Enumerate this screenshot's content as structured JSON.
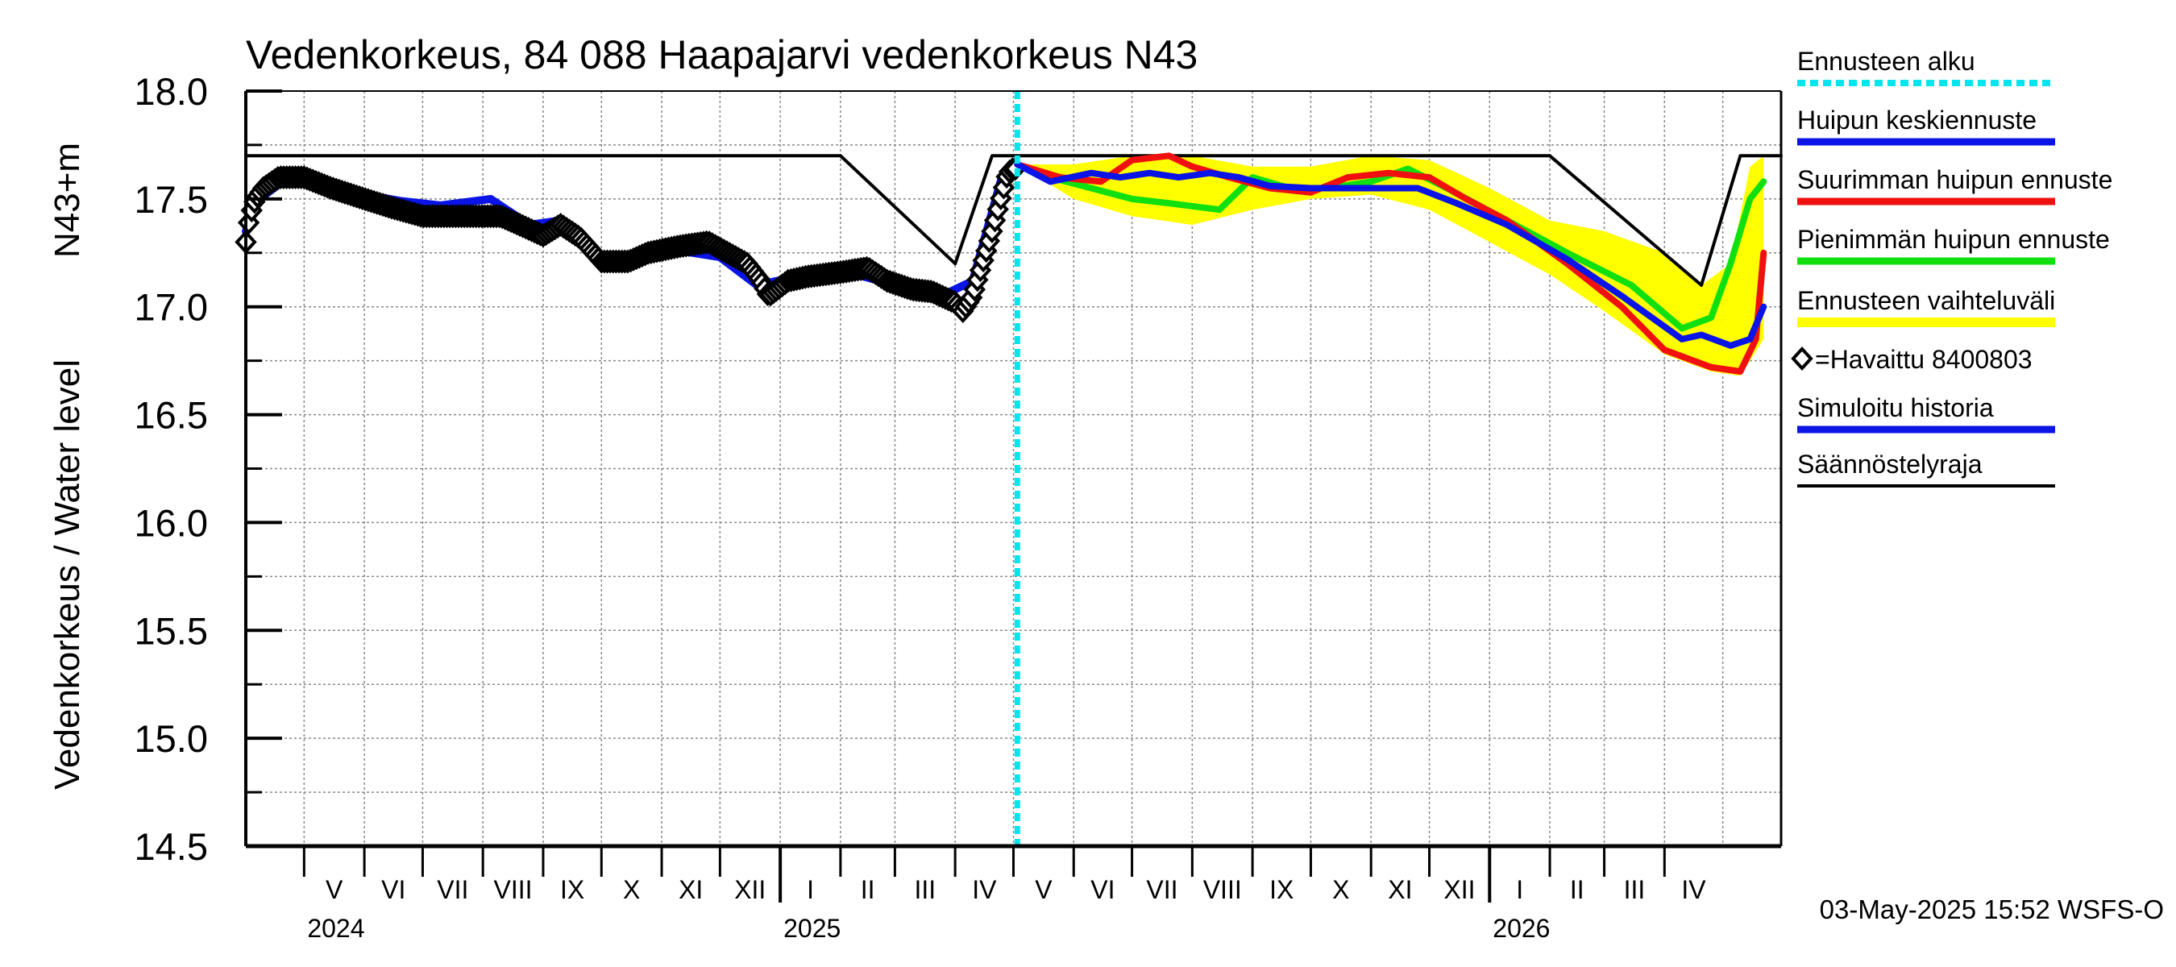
{
  "chart_data": {
    "type": "line",
    "title": "Vedenkorkeus, 84 088 Haapajarvi vedenkorkeus N43",
    "ylabel_outer": "Vedenkorkeus / Water level",
    "ylabel_inner": "N43+m",
    "ylim": [
      14.5,
      18.0
    ],
    "yticks": [
      "18.0",
      "17.5",
      "17.0",
      "16.5",
      "16.0",
      "15.5",
      "15.0",
      "14.5"
    ],
    "grid": true,
    "x_start": "2024-04-01",
    "x_end": "2026-05-31",
    "forecast_start": "2025-05-03",
    "months": [
      "V",
      "VI",
      "VII",
      "VIII",
      "IX",
      "X",
      "XI",
      "XII",
      "I",
      "II",
      "III",
      "IV",
      "V",
      "VI",
      "VII",
      "VIII",
      "IX",
      "X",
      "XI",
      "XII",
      "I",
      "II",
      "III",
      "IV"
    ],
    "years": [
      "2024",
      "2025",
      "2026"
    ],
    "timestamp": "03-May-2025 15:52 WSFS-O",
    "legend": {
      "position": "right",
      "items": [
        {
          "key": "forecast_start",
          "label": "Ennusteen alku",
          "color": "#00e5ee",
          "style": "dashed"
        },
        {
          "key": "mean",
          "label": "Huipun keskiennuste",
          "color": "#0a14e6",
          "style": "line"
        },
        {
          "key": "max",
          "label": "Suurimman huipun ennuste",
          "color": "#f01010",
          "style": "line"
        },
        {
          "key": "min",
          "label": "Pienimmän huipun ennuste",
          "color": "#10e010",
          "style": "line"
        },
        {
          "key": "band",
          "label": "Ennusteen vaihteluväli",
          "color": "#ffff00",
          "style": "band"
        },
        {
          "key": "observed",
          "label": "=Havaittu 8400803",
          "color": "#000000",
          "style": "marker"
        },
        {
          "key": "sim",
          "label": "Simuloitu historia",
          "color": "#0a14e6",
          "style": "line"
        },
        {
          "key": "reg",
          "label": "Säännöstelyraja",
          "color": "#000000",
          "style": "thin"
        }
      ]
    },
    "series": {
      "regulation_limit": [
        [
          "2024-04-01",
          17.7
        ],
        [
          "2025-02-01",
          17.7
        ],
        [
          "2025-04-01",
          17.2
        ],
        [
          "2025-04-20",
          17.7
        ],
        [
          "2026-02-01",
          17.7
        ],
        [
          "2026-04-20",
          17.1
        ],
        [
          "2026-05-10",
          17.7
        ],
        [
          "2026-05-31",
          17.7
        ]
      ],
      "observed": [
        [
          "2024-04-01",
          17.3
        ],
        [
          "2024-04-03",
          17.42
        ],
        [
          "2024-04-06",
          17.5
        ],
        [
          "2024-04-10",
          17.55
        ],
        [
          "2024-04-18",
          17.6
        ],
        [
          "2024-05-01",
          17.6
        ],
        [
          "2024-05-15",
          17.55
        ],
        [
          "2024-06-01",
          17.5
        ],
        [
          "2024-06-15",
          17.46
        ],
        [
          "2024-07-01",
          17.42
        ],
        [
          "2024-07-15",
          17.42
        ],
        [
          "2024-07-31",
          17.42
        ],
        [
          "2024-08-10",
          17.42
        ],
        [
          "2024-08-20",
          17.38
        ],
        [
          "2024-09-01",
          17.33
        ],
        [
          "2024-09-10",
          17.38
        ],
        [
          "2024-09-20",
          17.32
        ],
        [
          "2024-10-01",
          17.21
        ],
        [
          "2024-10-15",
          17.21
        ],
        [
          "2024-10-25",
          17.25
        ],
        [
          "2024-11-10",
          17.28
        ],
        [
          "2024-11-25",
          17.3
        ],
        [
          "2024-12-05",
          17.25
        ],
        [
          "2024-12-15",
          17.2
        ],
        [
          "2024-12-22",
          17.12
        ],
        [
          "2024-12-26",
          17.05
        ],
        [
          "2025-01-05",
          17.12
        ],
        [
          "2025-01-15",
          17.14
        ],
        [
          "2025-02-01",
          17.16
        ],
        [
          "2025-02-15",
          17.18
        ],
        [
          "2025-02-25",
          17.12
        ],
        [
          "2025-03-10",
          17.08
        ],
        [
          "2025-03-20",
          17.07
        ],
        [
          "2025-04-01",
          17.02
        ],
        [
          "2025-04-05",
          16.98
        ],
        [
          "2025-04-10",
          17.05
        ],
        [
          "2025-04-15",
          17.2
        ],
        [
          "2025-04-20",
          17.35
        ],
        [
          "2025-04-25",
          17.52
        ],
        [
          "2025-04-28",
          17.62
        ],
        [
          "2025-05-01",
          17.64
        ],
        [
          "2025-05-03",
          17.64
        ]
      ],
      "simulated": [
        [
          "2024-04-01",
          17.35
        ],
        [
          "2024-04-08",
          17.5
        ],
        [
          "2024-04-20",
          17.58
        ],
        [
          "2024-05-10",
          17.56
        ],
        [
          "2024-06-01",
          17.52
        ],
        [
          "2024-06-20",
          17.49
        ],
        [
          "2024-07-10",
          17.47
        ],
        [
          "2024-08-05",
          17.5
        ],
        [
          "2024-08-25",
          17.38
        ],
        [
          "2024-09-10",
          17.4
        ],
        [
          "2024-10-01",
          17.22
        ],
        [
          "2024-10-20",
          17.22
        ],
        [
          "2024-11-10",
          17.26
        ],
        [
          "2024-12-01",
          17.23
        ],
        [
          "2024-12-20",
          17.1
        ],
        [
          "2025-01-10",
          17.14
        ],
        [
          "2025-02-01",
          17.17
        ],
        [
          "2025-03-01",
          17.1
        ],
        [
          "2025-03-25",
          17.05
        ],
        [
          "2025-04-10",
          17.12
        ],
        [
          "2025-04-25",
          17.6
        ],
        [
          "2025-05-03",
          17.66
        ]
      ],
      "mean": [
        [
          "2025-05-03",
          17.66
        ],
        [
          "2025-05-20",
          17.58
        ],
        [
          "2025-06-10",
          17.62
        ],
        [
          "2025-06-25",
          17.6
        ],
        [
          "2025-07-10",
          17.62
        ],
        [
          "2025-07-25",
          17.6
        ],
        [
          "2025-08-10",
          17.62
        ],
        [
          "2025-08-25",
          17.6
        ],
        [
          "2025-09-10",
          17.56
        ],
        [
          "2025-10-01",
          17.55
        ],
        [
          "2025-11-01",
          17.55
        ],
        [
          "2025-11-25",
          17.55
        ],
        [
          "2025-12-15",
          17.48
        ],
        [
          "2026-01-10",
          17.38
        ],
        [
          "2026-02-10",
          17.22
        ],
        [
          "2026-03-10",
          17.05
        ],
        [
          "2026-04-10",
          16.85
        ],
        [
          "2026-04-20",
          16.87
        ],
        [
          "2026-05-05",
          16.82
        ],
        [
          "2026-05-15",
          16.85
        ],
        [
          "2026-05-22",
          17.0
        ]
      ],
      "max": [
        [
          "2025-05-03",
          17.66
        ],
        [
          "2025-05-25",
          17.6
        ],
        [
          "2025-06-15",
          17.58
        ],
        [
          "2025-07-01",
          17.68
        ],
        [
          "2025-07-20",
          17.7
        ],
        [
          "2025-08-01",
          17.65
        ],
        [
          "2025-08-20",
          17.6
        ],
        [
          "2025-09-10",
          17.55
        ],
        [
          "2025-10-01",
          17.53
        ],
        [
          "2025-10-20",
          17.6
        ],
        [
          "2025-11-10",
          17.62
        ],
        [
          "2025-12-01",
          17.6
        ],
        [
          "2025-12-20",
          17.5
        ],
        [
          "2026-01-10",
          17.4
        ],
        [
          "2026-02-10",
          17.2
        ],
        [
          "2026-03-10",
          17.0
        ],
        [
          "2026-04-01",
          16.8
        ],
        [
          "2026-04-25",
          16.72
        ],
        [
          "2026-05-10",
          16.7
        ],
        [
          "2026-05-18",
          16.85
        ],
        [
          "2026-05-22",
          17.25
        ]
      ],
      "min": [
        [
          "2025-05-03",
          17.66
        ],
        [
          "2025-05-20",
          17.6
        ],
        [
          "2025-06-10",
          17.55
        ],
        [
          "2025-07-01",
          17.5
        ],
        [
          "2025-07-20",
          17.48
        ],
        [
          "2025-08-15",
          17.45
        ],
        [
          "2025-09-01",
          17.6
        ],
        [
          "2025-09-20",
          17.55
        ],
        [
          "2025-10-10",
          17.55
        ],
        [
          "2025-11-01",
          17.58
        ],
        [
          "2025-11-20",
          17.64
        ],
        [
          "2025-12-10",
          17.55
        ],
        [
          "2026-01-10",
          17.4
        ],
        [
          "2026-02-10",
          17.25
        ],
        [
          "2026-03-15",
          17.1
        ],
        [
          "2026-04-10",
          16.9
        ],
        [
          "2026-04-25",
          16.95
        ],
        [
          "2026-05-05",
          17.2
        ],
        [
          "2026-05-15",
          17.5
        ],
        [
          "2026-05-22",
          17.58
        ]
      ],
      "band_upper": [
        [
          "2025-05-03",
          17.66
        ],
        [
          "2025-06-01",
          17.66
        ],
        [
          "2025-07-01",
          17.7
        ],
        [
          "2025-08-01",
          17.7
        ],
        [
          "2025-09-01",
          17.65
        ],
        [
          "2025-10-01",
          17.65
        ],
        [
          "2025-11-01",
          17.7
        ],
        [
          "2025-12-01",
          17.68
        ],
        [
          "2026-01-01",
          17.55
        ],
        [
          "2026-02-01",
          17.4
        ],
        [
          "2026-03-01",
          17.35
        ],
        [
          "2026-04-01",
          17.25
        ],
        [
          "2026-04-20",
          17.1
        ],
        [
          "2026-05-05",
          17.2
        ],
        [
          "2026-05-15",
          17.65
        ],
        [
          "2026-05-22",
          17.7
        ]
      ],
      "band_lower": [
        [
          "2025-05-03",
          17.66
        ],
        [
          "2025-06-01",
          17.5
        ],
        [
          "2025-07-01",
          17.42
        ],
        [
          "2025-08-01",
          17.38
        ],
        [
          "2025-09-01",
          17.45
        ],
        [
          "2025-10-01",
          17.5
        ],
        [
          "2025-11-01",
          17.52
        ],
        [
          "2025-12-01",
          17.45
        ],
        [
          "2026-01-01",
          17.3
        ],
        [
          "2026-02-01",
          17.15
        ],
        [
          "2026-03-01",
          16.98
        ],
        [
          "2026-04-01",
          16.78
        ],
        [
          "2026-04-25",
          16.7
        ],
        [
          "2026-05-10",
          16.68
        ],
        [
          "2026-05-22",
          16.85
        ]
      ]
    }
  }
}
